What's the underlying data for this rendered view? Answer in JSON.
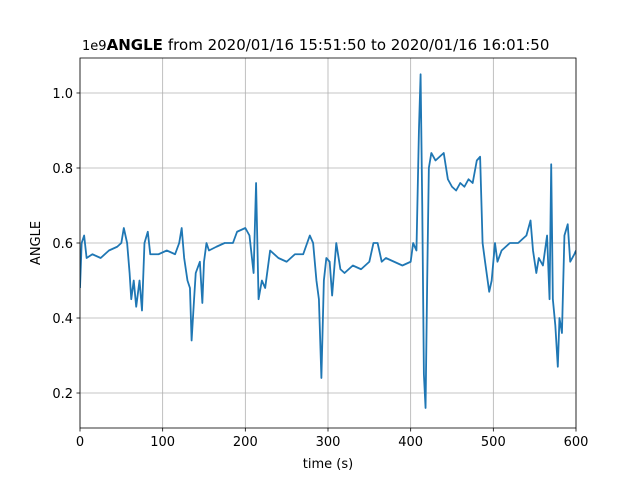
{
  "chart_data": {
    "type": "line",
    "title_bold": "ANGLE",
    "title": "from 2020/01/16 15:51:50 to 2020/01/16 16:01:50",
    "x_label": "time (s)",
    "y_label": "ANGLE",
    "y_offset_label": "1e9",
    "xlim": [
      0,
      600
    ],
    "ylim": [
      0.1067,
      1.0933
    ],
    "xticks": [
      0,
      100,
      200,
      300,
      400,
      500,
      600
    ],
    "yticks": [
      0.2,
      0.4,
      0.6,
      0.8,
      {
        "value": 1.0,
        "label": "1.0"
      }
    ],
    "grid": true,
    "series": [
      {
        "color": "#1f77b4",
        "x": [
          0,
          2,
          5,
          8,
          15,
          25,
          35,
          45,
          50,
          53,
          57,
          60,
          62,
          65,
          68,
          72,
          75,
          78,
          82,
          85,
          95,
          105,
          115,
          120,
          123,
          126,
          130,
          133,
          135,
          138,
          140,
          145,
          148,
          150,
          153,
          156,
          165,
          175,
          185,
          190,
          200,
          205,
          210,
          213,
          216,
          220,
          224,
          230,
          240,
          250,
          260,
          270,
          278,
          282,
          286,
          289,
          292,
          295,
          298,
          302,
          305,
          310,
          315,
          320,
          330,
          340,
          350,
          355,
          360,
          365,
          370,
          380,
          390,
          400,
          403,
          407,
          410,
          412,
          414,
          416,
          418,
          420,
          422,
          425,
          430,
          435,
          440,
          445,
          450,
          455,
          460,
          465,
          470,
          475,
          480,
          484,
          487,
          490,
          495,
          498,
          502,
          505,
          510,
          520,
          530,
          540,
          545,
          548,
          552,
          555,
          560,
          565,
          568,
          570,
          572,
          575,
          578,
          580,
          583,
          586,
          590,
          593,
          598,
          600
        ],
        "values": [
          0.48,
          0.6,
          0.62,
          0.56,
          0.57,
          0.56,
          0.58,
          0.59,
          0.6,
          0.64,
          0.6,
          0.52,
          0.45,
          0.5,
          0.43,
          0.5,
          0.42,
          0.6,
          0.63,
          0.57,
          0.57,
          0.58,
          0.57,
          0.6,
          0.64,
          0.56,
          0.5,
          0.48,
          0.34,
          0.45,
          0.52,
          0.55,
          0.44,
          0.55,
          0.6,
          0.58,
          0.59,
          0.6,
          0.6,
          0.63,
          0.64,
          0.62,
          0.52,
          0.76,
          0.45,
          0.5,
          0.48,
          0.58,
          0.56,
          0.55,
          0.57,
          0.57,
          0.62,
          0.6,
          0.5,
          0.45,
          0.24,
          0.5,
          0.56,
          0.55,
          0.46,
          0.6,
          0.53,
          0.52,
          0.54,
          0.53,
          0.55,
          0.6,
          0.6,
          0.55,
          0.56,
          0.55,
          0.54,
          0.55,
          0.6,
          0.58,
          0.9,
          1.05,
          0.7,
          0.25,
          0.16,
          0.5,
          0.8,
          0.84,
          0.82,
          0.83,
          0.84,
          0.77,
          0.75,
          0.74,
          0.76,
          0.75,
          0.77,
          0.76,
          0.82,
          0.83,
          0.6,
          0.55,
          0.47,
          0.5,
          0.6,
          0.55,
          0.58,
          0.6,
          0.6,
          0.62,
          0.66,
          0.58,
          0.52,
          0.56,
          0.54,
          0.62,
          0.45,
          0.81,
          0.45,
          0.38,
          0.27,
          0.4,
          0.36,
          0.62,
          0.65,
          0.55,
          0.57,
          0.58
        ]
      }
    ]
  }
}
